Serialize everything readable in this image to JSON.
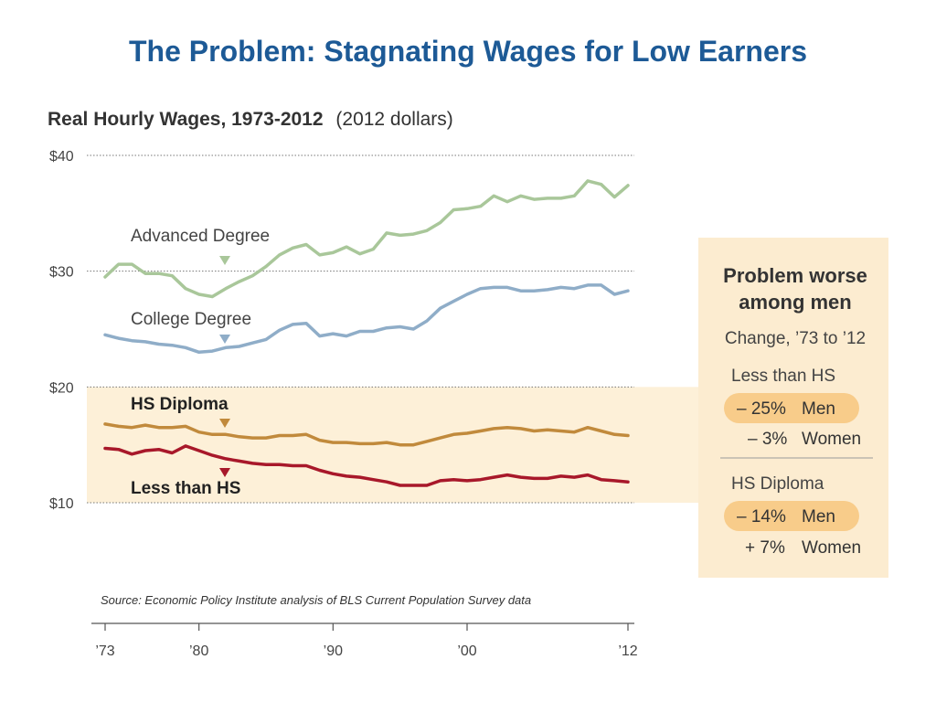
{
  "slide_title": "The Problem: Stagnating Wages for Low Earners",
  "colors": {
    "title": "#1d5a96",
    "advanced": "#a9c79a",
    "college": "#8fadc8",
    "hs_diploma": "#c18a3c",
    "less_than_hs": "#a8182a",
    "highlight_band": "#fdf0d8",
    "panel_bg": "#fcecd0",
    "pill": "#f8cc8a"
  },
  "chart_data": {
    "type": "line",
    "title": "Real Hourly Wages, 1973-2012",
    "subtitle": "(2012 dollars)",
    "source": "Source: Economic Policy Institute analysis of BLS Current Population Survey data",
    "x_range": [
      1973,
      2012
    ],
    "ylim": [
      10,
      40
    ],
    "y_ticks": [
      {
        "value": 40,
        "label": "$40"
      },
      {
        "value": 30,
        "label": "$30"
      },
      {
        "value": 20,
        "label": "$20"
      },
      {
        "value": 10,
        "label": "$10"
      }
    ],
    "x_ticks": [
      {
        "value": 1973,
        "label": "’73"
      },
      {
        "value": 1980,
        "label": "’80"
      },
      {
        "value": 1990,
        "label": "’90"
      },
      {
        "value": 2000,
        "label": "’00"
      },
      {
        "value": 2012,
        "label": "’12"
      }
    ],
    "highlight_range": [
      10,
      20
    ],
    "grid": "horizontal dotted",
    "series": [
      {
        "name": "Advanced Degree",
        "key": "advanced",
        "x": [
          1973,
          1974,
          1975,
          1976,
          1977,
          1978,
          1979,
          1980,
          1981,
          1982,
          1983,
          1984,
          1985,
          1986,
          1987,
          1988,
          1989,
          1990,
          1991,
          1992,
          1993,
          1994,
          1995,
          1996,
          1997,
          1998,
          1999,
          2000,
          2001,
          2002,
          2003,
          2004,
          2005,
          2006,
          2007,
          2008,
          2009,
          2010,
          2011,
          2012
        ],
        "values": [
          29.5,
          30.6,
          30.6,
          29.8,
          29.8,
          29.6,
          28.5,
          28.0,
          27.8,
          28.5,
          29.1,
          29.6,
          30.4,
          31.4,
          32.0,
          32.3,
          31.4,
          31.6,
          32.1,
          31.5,
          31.9,
          33.3,
          33.1,
          33.2,
          33.5,
          34.2,
          35.3,
          35.4,
          35.6,
          36.5,
          36.0,
          36.5,
          36.2,
          36.3,
          36.3,
          36.5,
          37.8,
          37.5,
          36.4,
          37.4
        ]
      },
      {
        "name": "College Degree",
        "key": "college",
        "x": [
          1973,
          1974,
          1975,
          1976,
          1977,
          1978,
          1979,
          1980,
          1981,
          1982,
          1983,
          1984,
          1985,
          1986,
          1987,
          1988,
          1989,
          1990,
          1991,
          1992,
          1993,
          1994,
          1995,
          1996,
          1997,
          1998,
          1999,
          2000,
          2001,
          2002,
          2003,
          2004,
          2005,
          2006,
          2007,
          2008,
          2009,
          2010,
          2011,
          2012
        ],
        "values": [
          24.5,
          24.2,
          24.0,
          23.9,
          23.7,
          23.6,
          23.4,
          23.0,
          23.1,
          23.4,
          23.5,
          23.8,
          24.1,
          24.9,
          25.4,
          25.5,
          24.4,
          24.6,
          24.4,
          24.8,
          24.8,
          25.1,
          25.2,
          25.0,
          25.7,
          26.8,
          27.4,
          28.0,
          28.5,
          28.6,
          28.6,
          28.3,
          28.3,
          28.4,
          28.6,
          28.5,
          28.8,
          28.8,
          28.0,
          28.3
        ]
      },
      {
        "name": "HS Diploma",
        "key": "hs_diploma",
        "x": [
          1973,
          1974,
          1975,
          1976,
          1977,
          1978,
          1979,
          1980,
          1981,
          1982,
          1983,
          1984,
          1985,
          1986,
          1987,
          1988,
          1989,
          1990,
          1991,
          1992,
          1993,
          1994,
          1995,
          1996,
          1997,
          1998,
          1999,
          2000,
          2001,
          2002,
          2003,
          2004,
          2005,
          2006,
          2007,
          2008,
          2009,
          2010,
          2011,
          2012
        ],
        "values": [
          16.8,
          16.6,
          16.5,
          16.7,
          16.5,
          16.5,
          16.6,
          16.1,
          15.9,
          15.9,
          15.7,
          15.6,
          15.6,
          15.8,
          15.8,
          15.9,
          15.4,
          15.2,
          15.2,
          15.1,
          15.1,
          15.2,
          15.0,
          15.0,
          15.3,
          15.6,
          15.9,
          16.0,
          16.2,
          16.4,
          16.5,
          16.4,
          16.2,
          16.3,
          16.2,
          16.1,
          16.5,
          16.2,
          15.9,
          15.8
        ]
      },
      {
        "name": "Less than HS",
        "key": "less_than_hs",
        "x": [
          1973,
          1974,
          1975,
          1976,
          1977,
          1978,
          1979,
          1980,
          1981,
          1982,
          1983,
          1984,
          1985,
          1986,
          1987,
          1988,
          1989,
          1990,
          1991,
          1992,
          1993,
          1994,
          1995,
          1996,
          1997,
          1998,
          1999,
          2000,
          2001,
          2002,
          2003,
          2004,
          2005,
          2006,
          2007,
          2008,
          2009,
          2010,
          2011,
          2012
        ],
        "values": [
          14.7,
          14.6,
          14.2,
          14.5,
          14.6,
          14.3,
          14.9,
          14.5,
          14.1,
          13.8,
          13.6,
          13.4,
          13.3,
          13.3,
          13.2,
          13.2,
          12.8,
          12.5,
          12.3,
          12.2,
          12.0,
          11.8,
          11.5,
          11.5,
          11.5,
          11.9,
          12.0,
          11.9,
          12.0,
          12.2,
          12.4,
          12.2,
          12.1,
          12.1,
          12.3,
          12.2,
          12.4,
          12.0,
          11.9,
          11.8
        ]
      }
    ],
    "series_labels": [
      {
        "key": "advanced",
        "text": "Advanced Degree",
        "bold": false
      },
      {
        "key": "college",
        "text": "College Degree",
        "bold": false
      },
      {
        "key": "hs_diploma",
        "text": "HS Diploma",
        "bold": true
      },
      {
        "key": "less_than_hs",
        "text": "Less than HS",
        "bold": true
      }
    ]
  },
  "side_panel": {
    "heading_line1": "Problem worse",
    "heading_line2": "among men",
    "subheading": "Change, ’73 to ’12",
    "groups": [
      {
        "label": "Less than HS",
        "men_value": "– 25%",
        "men_label": "Men",
        "women_value": "– 3%",
        "women_label": "Women"
      },
      {
        "label": "HS Diploma",
        "men_value": "– 14%",
        "men_label": "Men",
        "women_value": "+ 7%",
        "women_label": "Women"
      }
    ]
  }
}
